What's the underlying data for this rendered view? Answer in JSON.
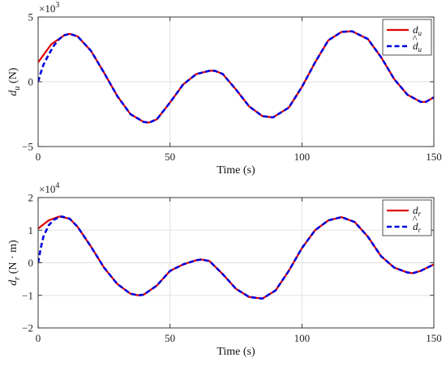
{
  "chart_data": [
    {
      "type": "line",
      "xlabel": "Time (s)",
      "ylabel_main": "d",
      "ylabel_sub": "u",
      "ylabel_unit": "(N)",
      "exponent_base": "×10",
      "exponent_power": "3",
      "xlim": [
        0,
        150
      ],
      "ylim": [
        -5,
        5
      ],
      "xticks": [
        0,
        50,
        100,
        150
      ],
      "yticks": [
        -5,
        0,
        5
      ],
      "grid": true,
      "legend_position": "top-right",
      "series": [
        {
          "name": "d_u",
          "legend_main": "d",
          "legend_sub": "u",
          "hat": false,
          "color": "#e00000",
          "style": "solid",
          "x": [
            0,
            5,
            10,
            12,
            15,
            20,
            25,
            30,
            35,
            40,
            42,
            45,
            50,
            55,
            60,
            65,
            67,
            70,
            75,
            80,
            85,
            89,
            95,
            100,
            105,
            110,
            115,
            119,
            125,
            130,
            135,
            140,
            145,
            147,
            150
          ],
          "values": [
            1.5,
            2.9,
            3.6,
            3.7,
            3.5,
            2.4,
            0.7,
            -1.1,
            -2.5,
            -3.1,
            -3.15,
            -2.9,
            -1.6,
            -0.2,
            0.6,
            0.85,
            0.85,
            0.6,
            -0.6,
            -1.9,
            -2.65,
            -2.75,
            -2.0,
            -0.4,
            1.5,
            3.2,
            3.85,
            3.9,
            3.3,
            1.9,
            0.2,
            -1.0,
            -1.55,
            -1.55,
            -1.2
          ]
        },
        {
          "name": "d_u hat",
          "legend_main": "d",
          "legend_sub": "u",
          "hat": true,
          "color": "#0000dd",
          "style": "dashed",
          "x": [
            0,
            1,
            2,
            4,
            6,
            8,
            10,
            12,
            15,
            20,
            25,
            30,
            35,
            40,
            42,
            45,
            50,
            55,
            60,
            65,
            67,
            70,
            75,
            80,
            85,
            89,
            95,
            100,
            105,
            110,
            115,
            119,
            125,
            130,
            135,
            140,
            145,
            147,
            150
          ],
          "values": [
            0,
            0.7,
            1.3,
            2.1,
            2.8,
            3.3,
            3.6,
            3.7,
            3.5,
            2.4,
            0.7,
            -1.1,
            -2.5,
            -3.1,
            -3.15,
            -2.9,
            -1.6,
            -0.2,
            0.6,
            0.85,
            0.85,
            0.6,
            -0.6,
            -1.9,
            -2.65,
            -2.75,
            -2.0,
            -0.4,
            1.5,
            3.2,
            3.85,
            3.9,
            3.3,
            1.9,
            0.2,
            -1.0,
            -1.55,
            -1.55,
            -1.2
          ]
        }
      ]
    },
    {
      "type": "line",
      "xlabel": "Time (s)",
      "ylabel_main": "d",
      "ylabel_sub": "r",
      "ylabel_unit": "(N · m)",
      "exponent_base": "×10",
      "exponent_power": "4",
      "xlim": [
        0,
        150
      ],
      "ylim": [
        -2,
        2
      ],
      "xticks": [
        0,
        50,
        100,
        150
      ],
      "yticks": [
        -2,
        -1,
        0,
        1,
        2
      ],
      "grid": true,
      "legend_position": "top-right",
      "series": [
        {
          "name": "d_r",
          "legend_main": "d",
          "legend_sub": "r",
          "hat": false,
          "color": "#e00000",
          "style": "solid",
          "x": [
            0,
            4,
            8,
            12,
            15,
            20,
            25,
            30,
            35,
            38,
            40,
            45,
            50,
            55,
            60,
            62,
            65,
            70,
            75,
            80,
            85,
            90,
            95,
            100,
            105,
            110,
            115,
            120,
            125,
            130,
            135,
            140,
            142,
            145,
            150
          ],
          "values": [
            1.05,
            1.3,
            1.42,
            1.35,
            1.1,
            0.5,
            -0.15,
            -0.65,
            -0.95,
            -1.0,
            -0.98,
            -0.7,
            -0.25,
            -0.05,
            0.08,
            0.1,
            0.05,
            -0.35,
            -0.8,
            -1.05,
            -1.1,
            -0.85,
            -0.25,
            0.45,
            1.0,
            1.3,
            1.4,
            1.25,
            0.8,
            0.2,
            -0.15,
            -0.3,
            -0.32,
            -0.25,
            -0.05
          ]
        },
        {
          "name": "d_r hat",
          "legend_main": "d",
          "legend_sub": "r",
          "hat": true,
          "color": "#0000dd",
          "style": "dashed",
          "x": [
            0,
            1,
            2,
            4,
            6,
            8,
            9,
            12,
            15,
            20,
            25,
            30,
            35,
            38,
            40,
            45,
            50,
            55,
            60,
            62,
            65,
            70,
            75,
            80,
            85,
            90,
            95,
            100,
            105,
            110,
            115,
            120,
            125,
            130,
            135,
            140,
            142,
            145,
            150
          ],
          "values": [
            0,
            0.45,
            0.8,
            1.15,
            1.32,
            1.4,
            1.42,
            1.35,
            1.1,
            0.5,
            -0.15,
            -0.65,
            -0.95,
            -1.0,
            -0.98,
            -0.7,
            -0.25,
            -0.05,
            0.08,
            0.1,
            0.05,
            -0.35,
            -0.8,
            -1.05,
            -1.1,
            -0.85,
            -0.25,
            0.45,
            1.0,
            1.3,
            1.4,
            1.25,
            0.8,
            0.2,
            -0.15,
            -0.3,
            -0.32,
            -0.25,
            -0.05
          ]
        }
      ]
    }
  ]
}
